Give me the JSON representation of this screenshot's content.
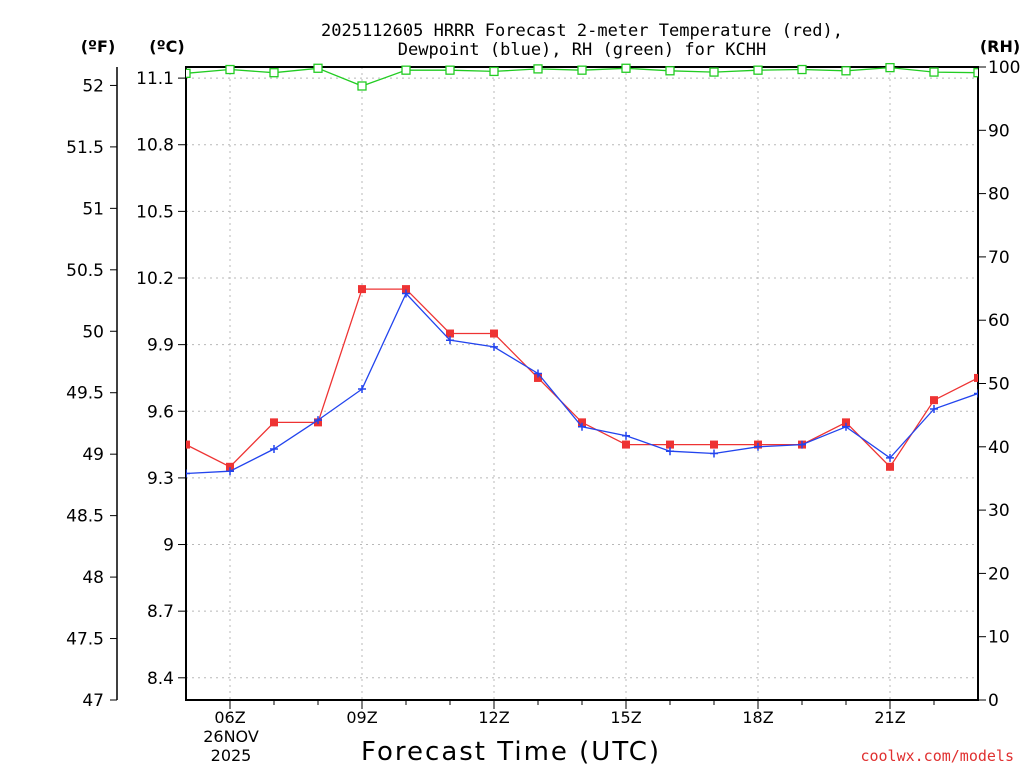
{
  "chart_data": {
    "type": "line",
    "title_line1": "2025112605 HRRR Forecast 2-meter Temperature (red),",
    "title_line2": "Dewpoint (blue), RH (green) for KCHH",
    "xlabel": "Forecast Time (UTC)",
    "credit": "coolwx.com/models",
    "unit_labels": {
      "f": "(ºF)",
      "c": "(ºC)",
      "rh": "(RH)"
    },
    "x_range_hours": [
      5,
      23
    ],
    "x_ticks": [
      {
        "hour": 6,
        "label": "06Z"
      },
      {
        "hour": 9,
        "label": "09Z"
      },
      {
        "hour": 12,
        "label": "12Z"
      },
      {
        "hour": 15,
        "label": "15Z"
      },
      {
        "hour": 18,
        "label": "18Z"
      },
      {
        "hour": 21,
        "label": "21Z"
      }
    ],
    "date_label_line1": "26NOV",
    "date_label_line2": "2025",
    "y_celsius_range": [
      8.3,
      11.15
    ],
    "y_celsius_ticks": [
      "8.4",
      "8.7",
      "9",
      "9.3",
      "9.6",
      "9.9",
      "10.2",
      "10.5",
      "10.8",
      "11.1"
    ],
    "y_fahrenheit_range": [
      47,
      52.15
    ],
    "y_fahrenheit_ticks": [
      "47",
      "47.5",
      "48",
      "48.5",
      "49",
      "49.5",
      "50",
      "50.5",
      "51",
      "51.5",
      "52"
    ],
    "y_rh_range": [
      0,
      100
    ],
    "y_rh_ticks": [
      "0",
      "10",
      "20",
      "30",
      "40",
      "50",
      "60",
      "70",
      "80",
      "90",
      "100"
    ],
    "x_hours": [
      5,
      6,
      7,
      8,
      9,
      10,
      11,
      12,
      13,
      14,
      15,
      16,
      17,
      18,
      19,
      20,
      21,
      22,
      23
    ],
    "series": [
      {
        "name": "Temperature",
        "color": "#ee3333",
        "unit": "C",
        "marker": "square",
        "values": [
          9.45,
          9.35,
          9.55,
          9.55,
          10.15,
          10.15,
          9.95,
          9.95,
          9.75,
          9.55,
          9.45,
          9.45,
          9.45,
          9.45,
          9.45,
          9.55,
          9.35,
          9.65,
          9.75
        ]
      },
      {
        "name": "Dewpoint",
        "color": "#2244ee",
        "unit": "C",
        "marker": "plus",
        "values": [
          9.32,
          9.33,
          9.43,
          9.56,
          9.7,
          10.13,
          9.92,
          9.89,
          9.77,
          9.53,
          9.49,
          9.42,
          9.41,
          9.44,
          9.45,
          9.53,
          9.39,
          9.61,
          9.68
        ]
      },
      {
        "name": "RH",
        "color": "#22cc22",
        "unit": "%",
        "marker": "open-square",
        "values": [
          99.0,
          99.6,
          99.1,
          99.8,
          97.0,
          99.5,
          99.5,
          99.3,
          99.7,
          99.5,
          99.8,
          99.4,
          99.2,
          99.5,
          99.6,
          99.4,
          99.9,
          99.2,
          99.1
        ]
      }
    ]
  }
}
